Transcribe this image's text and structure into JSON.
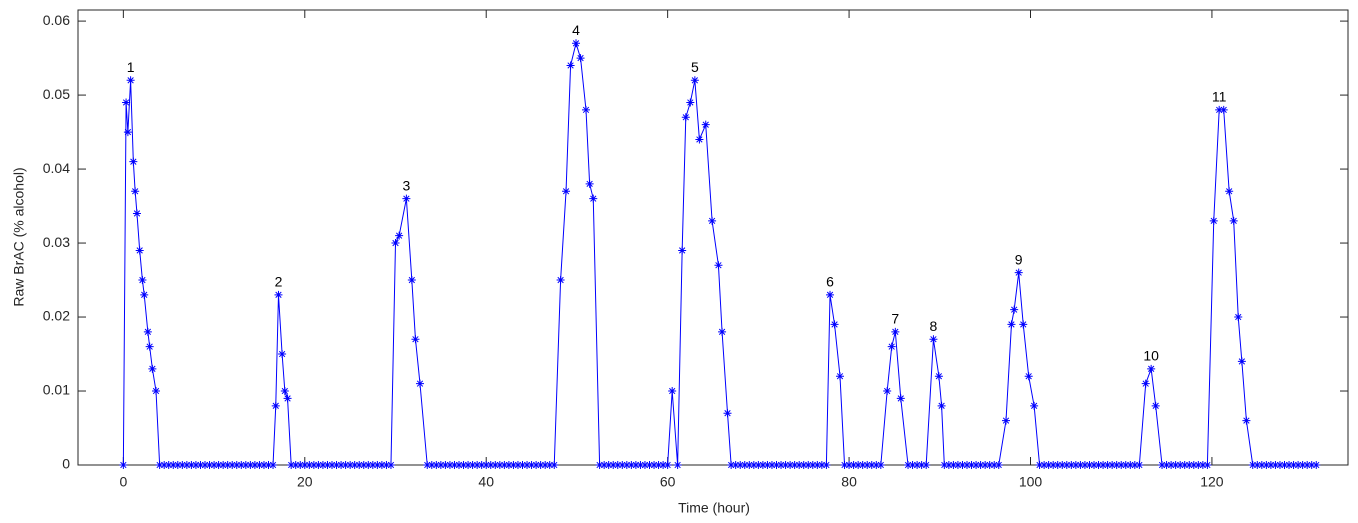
{
  "chart_data": {
    "type": "line",
    "xlabel": "Time (hour)",
    "ylabel": "Raw BrAC (% alcohol)",
    "xlim": [
      -5,
      135
    ],
    "xticks": [
      0,
      20,
      40,
      60,
      80,
      100,
      120
    ],
    "ylim": [
      0,
      0.0615
    ],
    "yticks": [
      0,
      0.01,
      0.02,
      0.03,
      0.04,
      0.05,
      0.06
    ],
    "grid": false,
    "x": [
      0,
      0.3,
      0.5,
      0.8,
      1.1,
      1.3,
      1.5,
      1.8,
      2.1,
      2.3,
      2.7,
      2.9,
      3.2,
      3.6,
      4,
      4.5,
      5,
      5.5,
      6,
      6.5,
      7,
      7.5,
      8,
      8.5,
      9,
      9.5,
      10,
      10.5,
      11,
      11.5,
      12,
      12.5,
      13,
      13.5,
      14,
      14.5,
      15,
      15.5,
      16,
      16.5,
      16.8,
      17.1,
      17.5,
      17.8,
      18.1,
      18.5,
      19,
      19.5,
      20,
      20.5,
      21,
      21.5,
      22,
      22.5,
      23,
      23.5,
      24,
      24.5,
      25,
      25.5,
      26,
      26.5,
      27,
      27.5,
      28,
      28.5,
      29,
      29.5,
      30,
      30.4,
      31.2,
      31.8,
      32.2,
      32.7,
      33.5,
      34,
      34.5,
      35,
      35.5,
      36,
      36.5,
      37,
      37.5,
      38,
      38.5,
      39,
      39.5,
      40,
      40.5,
      41,
      41.5,
      42,
      42.5,
      43,
      43.5,
      44,
      44.5,
      45,
      45.5,
      46,
      46.5,
      47,
      47.5,
      48.2,
      48.8,
      49.3,
      49.9,
      50.4,
      51,
      51.4,
      51.8,
      52.5,
      53,
      53.5,
      54,
      54.5,
      55,
      55.5,
      56,
      56.5,
      57,
      57.5,
      58,
      58.5,
      59,
      59.5,
      60,
      60.5,
      61.1,
      61.6,
      62,
      62.5,
      63,
      63.5,
      64.2,
      64.9,
      65.6,
      66,
      66.6,
      67,
      67.5,
      68,
      68.5,
      69,
      69.5,
      70,
      70.5,
      71,
      71.5,
      72,
      72.5,
      73,
      73.5,
      74,
      74.5,
      75,
      75.5,
      76,
      76.5,
      77,
      77.5,
      77.9,
      78.4,
      79,
      79.5,
      80,
      80.5,
      81,
      81.5,
      82,
      82.5,
      83,
      83.5,
      84.2,
      84.7,
      85.1,
      85.7,
      86.5,
      87,
      87.5,
      88,
      88.5,
      89.3,
      89.9,
      90.2,
      90.5,
      91,
      91.5,
      92,
      92.5,
      93,
      93.5,
      94,
      94.5,
      95,
      95.5,
      96,
      96.5,
      97.3,
      97.9,
      98.2,
      98.7,
      99.2,
      99.8,
      100.4,
      101,
      101.5,
      102,
      102.5,
      103,
      103.5,
      104,
      104.5,
      105,
      105.5,
      106,
      106.5,
      107,
      107.5,
      108,
      108.5,
      109,
      109.5,
      110,
      110.5,
      111,
      111.5,
      112,
      112.7,
      113.3,
      113.8,
      114.5,
      115,
      115.5,
      116,
      116.5,
      117,
      117.5,
      118,
      118.5,
      119,
      119.5,
      120.2,
      120.8,
      121.3,
      121.9,
      122.4,
      122.9,
      123.3,
      123.8,
      124.5,
      125,
      125.5,
      126,
      126.5,
      127,
      127.5,
      128,
      128.5,
      129,
      129.5,
      130,
      130.5,
      131,
      131.5
    ],
    "series": [
      {
        "color": "#0000ff",
        "values": [
          0,
          0.049,
          0.045,
          0.052,
          0.041,
          0.037,
          0.034,
          0.029,
          0.025,
          0.023,
          0.018,
          0.016,
          0.013,
          0.01,
          0,
          0,
          0,
          0,
          0,
          0,
          0,
          0,
          0,
          0,
          0,
          0,
          0,
          0,
          0,
          0,
          0,
          0,
          0,
          0,
          0,
          0,
          0,
          0,
          0,
          0,
          0.008,
          0.023,
          0.015,
          0.01,
          0.009,
          0,
          0,
          0,
          0,
          0,
          0,
          0,
          0,
          0,
          0,
          0,
          0,
          0,
          0,
          0,
          0,
          0,
          0,
          0,
          0,
          0,
          0,
          0,
          0.03,
          0.031,
          0.036,
          0.025,
          0.017,
          0.011,
          0,
          0,
          0,
          0,
          0,
          0,
          0,
          0,
          0,
          0,
          0,
          0,
          0,
          0,
          0,
          0,
          0,
          0,
          0,
          0,
          0,
          0,
          0,
          0,
          0,
          0,
          0,
          0,
          0,
          0.025,
          0.037,
          0.054,
          0.057,
          0.055,
          0.048,
          0.038,
          0.036,
          0,
          0,
          0,
          0,
          0,
          0,
          0,
          0,
          0,
          0,
          0,
          0,
          0,
          0,
          0,
          0,
          0.01,
          0,
          0.029,
          0.047,
          0.049,
          0.052,
          0.044,
          0.046,
          0.033,
          0.027,
          0.018,
          0.007,
          0,
          0,
          0,
          0,
          0,
          0,
          0,
          0,
          0,
          0,
          0,
          0,
          0,
          0,
          0,
          0,
          0,
          0,
          0,
          0,
          0,
          0,
          0.023,
          0.019,
          0.012,
          0,
          0,
          0,
          0,
          0,
          0,
          0,
          0,
          0,
          0.01,
          0.016,
          0.018,
          0.009,
          0,
          0,
          0,
          0,
          0,
          0.017,
          0.012,
          0.008,
          0,
          0,
          0,
          0,
          0,
          0,
          0,
          0,
          0,
          0,
          0,
          0,
          0,
          0.006,
          0.019,
          0.021,
          0.026,
          0.019,
          0.012,
          0.008,
          0,
          0,
          0,
          0,
          0,
          0,
          0,
          0,
          0,
          0,
          0,
          0,
          0,
          0,
          0,
          0,
          0,
          0,
          0,
          0,
          0,
          0,
          0,
          0.011,
          0.013,
          0.008,
          0,
          0,
          0,
          0,
          0,
          0,
          0,
          0,
          0,
          0,
          0,
          0.033,
          0.048,
          0.048,
          0.037,
          0.033,
          0.02,
          0.014,
          0.006,
          0,
          0,
          0,
          0,
          0,
          0,
          0,
          0,
          0,
          0,
          0,
          0,
          0,
          0,
          0
        ]
      }
    ],
    "annotations": [
      {
        "text": "1",
        "x": 0.8,
        "y": 0.052
      },
      {
        "text": "2",
        "x": 17.1,
        "y": 0.023
      },
      {
        "text": "3",
        "x": 31.2,
        "y": 0.036
      },
      {
        "text": "4",
        "x": 49.9,
        "y": 0.057
      },
      {
        "text": "5",
        "x": 63,
        "y": 0.052
      },
      {
        "text": "6",
        "x": 77.9,
        "y": 0.023
      },
      {
        "text": "7",
        "x": 85.1,
        "y": 0.018
      },
      {
        "text": "8",
        "x": 89.3,
        "y": 0.017
      },
      {
        "text": "9",
        "x": 98.7,
        "y": 0.026
      },
      {
        "text": "10",
        "x": 113.3,
        "y": 0.013
      },
      {
        "text": "11",
        "x": 120.8,
        "y": 0.048
      }
    ]
  }
}
